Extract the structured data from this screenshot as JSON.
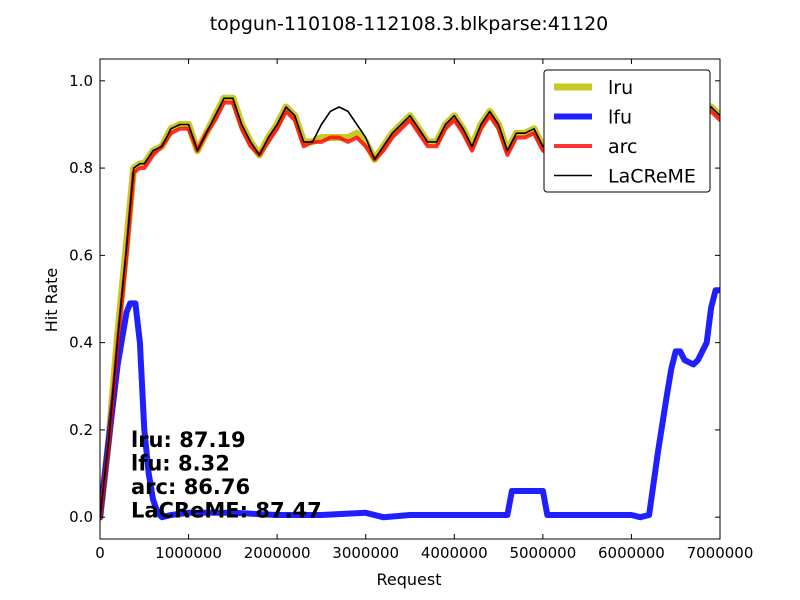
{
  "chart_data": {
    "type": "line",
    "title": "topgun-110108-112108.3.blkparse:41120",
    "xlabel": "Request",
    "ylabel": "Hit Rate",
    "xlim": [
      0,
      7000000
    ],
    "ylim": [
      -0.05,
      1.05
    ],
    "xticks": [
      0,
      1000000,
      2000000,
      3000000,
      4000000,
      5000000,
      6000000,
      7000000
    ],
    "xtick_labels": [
      "0",
      "1000000",
      "2000000",
      "3000000",
      "4000000",
      "5000000",
      "6000000",
      "7000000"
    ],
    "yticks": [
      0.0,
      0.2,
      0.4,
      0.6,
      0.8,
      1.0
    ],
    "ytick_labels": [
      "0.0",
      "0.2",
      "0.4",
      "0.6",
      "0.8",
      "1.0"
    ],
    "grid": false,
    "legend_position": "top-right",
    "series": [
      {
        "name": "lru",
        "color": "#bfbf00",
        "x": [
          0,
          100000,
          200000,
          300000,
          380000,
          450000,
          500000,
          600000,
          700000,
          800000,
          900000,
          1000000,
          1100000,
          1200000,
          1300000,
          1400000,
          1500000,
          1600000,
          1700000,
          1800000,
          1900000,
          2000000,
          2100000,
          2200000,
          2300000,
          2400000,
          2500000,
          2600000,
          2700000,
          2800000,
          2900000,
          3000000,
          3100000,
          3200000,
          3300000,
          3400000,
          3500000,
          3600000,
          3700000,
          3800000,
          3900000,
          4000000,
          4100000,
          4200000,
          4300000,
          4400000,
          4500000,
          4600000,
          4700000,
          4800000,
          4900000,
          5000000,
          5100000,
          5200000,
          5300000,
          5400000,
          5500000,
          5600000,
          5700000,
          5800000,
          5900000,
          6000000,
          6100000,
          6200000,
          6300000,
          6400000,
          6500000,
          6600000,
          6700000,
          6800000,
          6900000,
          7000000
        ],
        "values": [
          0.0,
          0.18,
          0.42,
          0.63,
          0.8,
          0.81,
          0.81,
          0.84,
          0.85,
          0.89,
          0.9,
          0.9,
          0.84,
          0.88,
          0.92,
          0.96,
          0.96,
          0.9,
          0.86,
          0.83,
          0.87,
          0.9,
          0.94,
          0.92,
          0.86,
          0.86,
          0.87,
          0.87,
          0.87,
          0.87,
          0.88,
          0.86,
          0.82,
          0.85,
          0.88,
          0.9,
          0.92,
          0.89,
          0.86,
          0.86,
          0.9,
          0.92,
          0.89,
          0.85,
          0.9,
          0.93,
          0.9,
          0.84,
          0.88,
          0.88,
          0.89,
          0.85,
          0.84,
          0.87,
          0.91,
          0.88,
          0.85,
          0.9,
          0.92,
          0.86,
          0.84,
          0.88,
          0.83,
          0.85,
          0.84,
          0.85,
          0.89,
          0.92,
          0.92,
          0.93,
          0.94,
          0.92
        ]
      },
      {
        "name": "lfu",
        "color": "#0000ff",
        "x": [
          0,
          100000,
          200000,
          300000,
          340000,
          400000,
          450000,
          500000,
          550000,
          600000,
          650000,
          700000,
          800000,
          1000000,
          1500000,
          2000000,
          2500000,
          3000000,
          3200000,
          3500000,
          4000000,
          4500000,
          4600000,
          4650000,
          5000000,
          5050000,
          5500000,
          6000000,
          6100000,
          6200000,
          6300000,
          6400000,
          6450000,
          6500000,
          6550000,
          6600000,
          6700000,
          6750000,
          6800000,
          6850000,
          6900000,
          6950000,
          7000000
        ],
        "values": [
          0.0,
          0.18,
          0.35,
          0.47,
          0.49,
          0.49,
          0.4,
          0.2,
          0.1,
          0.04,
          0.01,
          0.0,
          0.005,
          0.01,
          0.01,
          0.005,
          0.005,
          0.01,
          0.0,
          0.005,
          0.005,
          0.005,
          0.005,
          0.06,
          0.06,
          0.005,
          0.005,
          0.005,
          0.0,
          0.005,
          0.15,
          0.28,
          0.34,
          0.38,
          0.38,
          0.36,
          0.35,
          0.36,
          0.38,
          0.4,
          0.48,
          0.52,
          0.52
        ]
      },
      {
        "name": "arc",
        "color": "#ff0000",
        "x": [
          0,
          100000,
          200000,
          300000,
          380000,
          450000,
          500000,
          600000,
          700000,
          800000,
          900000,
          1000000,
          1100000,
          1200000,
          1300000,
          1400000,
          1500000,
          1600000,
          1700000,
          1800000,
          1900000,
          2000000,
          2100000,
          2200000,
          2300000,
          2400000,
          2500000,
          2600000,
          2700000,
          2800000,
          2900000,
          3000000,
          3100000,
          3200000,
          3300000,
          3400000,
          3500000,
          3600000,
          3700000,
          3800000,
          3900000,
          4000000,
          4100000,
          4200000,
          4300000,
          4400000,
          4500000,
          4600000,
          4700000,
          4800000,
          4900000,
          5000000,
          5100000,
          5200000,
          5300000,
          5400000,
          5500000,
          5600000,
          5700000,
          5800000,
          5900000,
          6000000,
          6100000,
          6200000,
          6300000,
          6400000,
          6500000,
          6600000,
          6700000,
          6800000,
          6900000,
          7000000
        ],
        "values": [
          0.0,
          0.17,
          0.4,
          0.6,
          0.79,
          0.8,
          0.8,
          0.83,
          0.85,
          0.88,
          0.89,
          0.89,
          0.84,
          0.88,
          0.91,
          0.95,
          0.95,
          0.89,
          0.85,
          0.83,
          0.86,
          0.89,
          0.93,
          0.91,
          0.85,
          0.86,
          0.86,
          0.87,
          0.87,
          0.86,
          0.87,
          0.85,
          0.82,
          0.84,
          0.87,
          0.89,
          0.91,
          0.88,
          0.85,
          0.85,
          0.89,
          0.91,
          0.88,
          0.84,
          0.89,
          0.92,
          0.89,
          0.83,
          0.87,
          0.87,
          0.88,
          0.84,
          0.83,
          0.86,
          0.9,
          0.87,
          0.84,
          0.89,
          0.91,
          0.85,
          0.83,
          0.87,
          0.82,
          0.84,
          0.83,
          0.84,
          0.88,
          0.91,
          0.91,
          0.92,
          0.93,
          0.91
        ]
      },
      {
        "name": "LaCReME",
        "color": "#000000",
        "x": [
          0,
          100000,
          200000,
          300000,
          380000,
          450000,
          500000,
          600000,
          700000,
          800000,
          900000,
          1000000,
          1100000,
          1200000,
          1300000,
          1400000,
          1500000,
          1600000,
          1700000,
          1800000,
          1900000,
          2000000,
          2100000,
          2200000,
          2300000,
          2400000,
          2500000,
          2600000,
          2700000,
          2800000,
          2900000,
          3000000,
          3100000,
          3200000,
          3300000,
          3400000,
          3500000,
          3600000,
          3700000,
          3800000,
          3900000,
          4000000,
          4100000,
          4200000,
          4300000,
          4400000,
          4500000,
          4600000,
          4700000,
          4800000,
          4900000,
          5000000,
          5100000,
          5200000,
          5300000,
          5400000,
          5500000,
          5600000,
          5700000,
          5800000,
          5900000,
          6000000,
          6100000,
          6200000,
          6300000,
          6400000,
          6500000,
          6600000,
          6700000,
          6800000,
          6900000,
          7000000
        ],
        "values": [
          0.0,
          0.18,
          0.41,
          0.62,
          0.8,
          0.81,
          0.81,
          0.84,
          0.85,
          0.89,
          0.9,
          0.9,
          0.84,
          0.88,
          0.92,
          0.96,
          0.96,
          0.9,
          0.86,
          0.83,
          0.87,
          0.9,
          0.94,
          0.92,
          0.86,
          0.86,
          0.9,
          0.93,
          0.94,
          0.93,
          0.9,
          0.87,
          0.82,
          0.85,
          0.88,
          0.9,
          0.92,
          0.89,
          0.86,
          0.86,
          0.9,
          0.92,
          0.89,
          0.85,
          0.9,
          0.93,
          0.9,
          0.84,
          0.88,
          0.88,
          0.89,
          0.85,
          0.84,
          0.87,
          0.91,
          0.88,
          0.85,
          0.9,
          0.92,
          0.86,
          0.84,
          0.88,
          0.83,
          0.85,
          0.84,
          0.85,
          0.89,
          0.92,
          0.92,
          0.93,
          0.94,
          0.92
        ]
      }
    ],
    "annotations": [
      {
        "label": "lru:",
        "value": "87.19"
      },
      {
        "label": "lfu:",
        "value": "8.32"
      },
      {
        "label": "arc:",
        "value": "86.76"
      },
      {
        "label": "LaCReME:",
        "value": "87.47"
      }
    ]
  }
}
